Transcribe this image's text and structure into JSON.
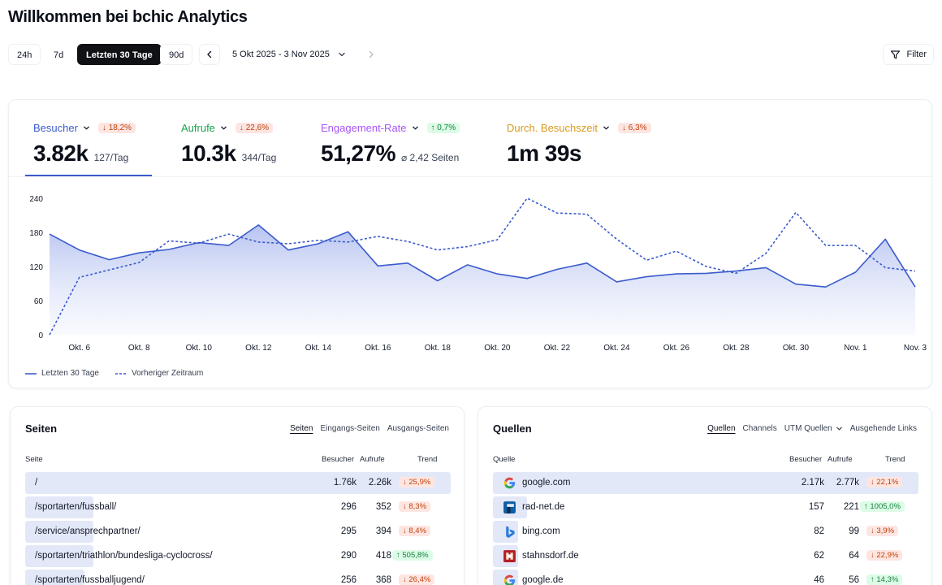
{
  "header": {
    "title": "Willkommen bei bchic Analytics"
  },
  "toolbar": {
    "ranges": [
      "24h",
      "7d",
      "Letzten 30 Tage",
      "90d"
    ],
    "active_range": "Letzten 30 Tage",
    "date_range": "5 Okt 2025 - 3 Nov 2025",
    "filter_label": "Filter"
  },
  "metrics": [
    {
      "label": "Besucher",
      "color": "#3b5bcc",
      "change": "↓ 18,2%",
      "direction": "down",
      "value": "3.82k",
      "sub": "127/Tag"
    },
    {
      "label": "Aufrufe",
      "color": "#16a34a",
      "change": "↓ 22,6%",
      "direction": "down",
      "value": "10.3k",
      "sub": "344/Tag"
    },
    {
      "label": "Engagement-Rate",
      "color": "#a855f7",
      "change": "↑ 0,7%",
      "direction": "up",
      "value": "51,27%",
      "sub": "⌀ 2,42 Seiten"
    },
    {
      "label": "Durch. Besuchszeit",
      "color": "#d99a1b",
      "change": "↓ 6,3%",
      "direction": "down",
      "value": "1m 39s",
      "sub": ""
    }
  ],
  "chart_data": {
    "type": "area",
    "x": [
      "Okt. 5",
      "Okt. 6",
      "Okt. 7",
      "Okt. 8",
      "Okt. 9",
      "Okt. 10",
      "Okt. 11",
      "Okt. 12",
      "Okt. 13",
      "Okt. 14",
      "Okt. 15",
      "Okt. 16",
      "Okt. 17",
      "Okt. 18",
      "Okt. 19",
      "Okt. 20",
      "Okt. 21",
      "Okt. 22",
      "Okt. 23",
      "Okt. 24",
      "Okt. 25",
      "Okt. 26",
      "Okt. 27",
      "Okt. 28",
      "Okt. 29",
      "Okt. 30",
      "Okt. 31",
      "Nov. 1",
      "Nov. 2",
      "Nov. 3"
    ],
    "tick_labels": [
      "Okt. 6",
      "Okt. 8",
      "Okt. 10",
      "Okt. 12",
      "Okt. 14",
      "Okt. 16",
      "Okt. 18",
      "Okt. 20",
      "Okt. 22",
      "Okt. 24",
      "Okt. 26",
      "Okt. 28",
      "Okt. 30",
      "Nov. 1",
      "Nov. 3"
    ],
    "y_ticks": [
      0,
      60,
      120,
      180,
      240
    ],
    "ylim": [
      0,
      240
    ],
    "grid": false,
    "legend_position": "bottom-left",
    "series": [
      {
        "name": "Letzten 30 Tage",
        "style": "solid",
        "color": "#3b5bcc",
        "values": [
          177,
          149,
          132,
          144,
          150,
          162,
          157,
          193,
          149,
          160,
          181,
          121,
          126,
          95,
          123,
          107,
          99,
          115,
          126,
          93,
          102,
          107,
          108,
          112,
          118,
          89,
          84,
          110,
          168,
          84
        ]
      },
      {
        "name": "Vorheriger Zeitraum",
        "style": "dashed",
        "color": "#3b5bcc",
        "values": [
          0,
          101,
          114,
          127,
          165,
          161,
          177,
          163,
          160,
          166,
          163,
          173,
          164,
          149,
          155,
          167,
          240,
          214,
          212,
          168,
          131,
          147,
          120,
          108,
          143,
          215,
          157,
          157,
          118,
          112
        ]
      }
    ]
  },
  "pages_panel": {
    "title": "Seiten",
    "tabs": [
      "Seiten",
      "Eingangs-Seiten",
      "Ausgangs-Seiten"
    ],
    "active_tab": "Seiten",
    "columns": {
      "page": "Seite",
      "visitors": "Besucher",
      "views": "Aufrufe",
      "trend": "Trend"
    },
    "rows": [
      {
        "page": "/",
        "visitors": "1.76k",
        "views": "2.26k",
        "trend": "↓ 25,9%",
        "direction": "down",
        "share": 1.0
      },
      {
        "page": "/sportarten/fussball/",
        "visitors": "296",
        "views": "352",
        "trend": "↓ 8,3%",
        "direction": "down",
        "share": 0.16
      },
      {
        "page": "/service/ansprechpartner/",
        "visitors": "295",
        "views": "394",
        "trend": "↓ 8,4%",
        "direction": "down",
        "share": 0.16
      },
      {
        "page": "/sportarten/triathlon/bundesliga-cyclocross/",
        "visitors": "290",
        "views": "418",
        "trend": "↑ 505,8%",
        "direction": "up",
        "share": 0.16
      },
      {
        "page": "/sportarten/fussballjugend/",
        "visitors": "256",
        "views": "368",
        "trend": "↓ 26,4%",
        "direction": "down",
        "share": 0.14
      }
    ]
  },
  "sources_panel": {
    "title": "Quellen",
    "tabs": [
      "Quellen",
      "Channels",
      "UTM Quellen",
      "Ausgehende Links"
    ],
    "active_tab": "Quellen",
    "columns": {
      "source": "Quelle",
      "visitors": "Besucher",
      "views": "Aufrufe",
      "trend": "Trend"
    },
    "rows": [
      {
        "source": "google.com",
        "icon": "google-icon",
        "visitors": "2.17k",
        "views": "2.77k",
        "trend": "↓ 22,1%",
        "direction": "down",
        "share": 1.0
      },
      {
        "source": "rad-net.de",
        "icon": "rad-net-icon",
        "visitors": "157",
        "views": "221",
        "trend": "↑ 1005,0%",
        "direction": "up",
        "share": 0.08
      },
      {
        "source": "bing.com",
        "icon": "bing-icon",
        "visitors": "82",
        "views": "99",
        "trend": "↓ 3,9%",
        "direction": "down",
        "share": 0.06
      },
      {
        "source": "stahnsdorf.de",
        "icon": "stahnsdorf-icon",
        "visitors": "62",
        "views": "64",
        "trend": "↓ 22,9%",
        "direction": "down",
        "share": 0.06
      },
      {
        "source": "google.de",
        "icon": "google-icon",
        "visitors": "46",
        "views": "56",
        "trend": "↑ 14,3%",
        "direction": "up",
        "share": 0.05
      }
    ]
  }
}
